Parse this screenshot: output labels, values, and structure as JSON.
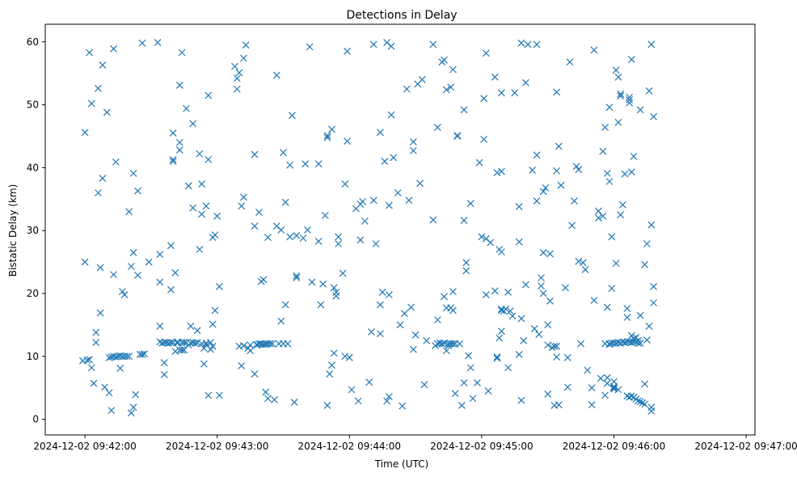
{
  "chart_data": {
    "type": "scatter",
    "title": "Detections in Delay",
    "xlabel": "Time (UTC)",
    "ylabel": "Bistatic Delay (km)",
    "marker": "x",
    "color": "#1f77b4",
    "grid": false,
    "legend": "none",
    "xlim_seconds_after_09_41_42": [
      0,
      322
    ],
    "ylim": [
      -2.5,
      62.8
    ],
    "x_ticks": [
      "2024-12-02 09:42:00",
      "2024-12-02 09:43:00",
      "2024-12-02 09:44:00",
      "2024-12-02 09:45:00",
      "2024-12-02 09:46:00",
      "2024-12-02 09:47:00"
    ],
    "y_ticks": [
      "0",
      "10",
      "20",
      "30",
      "40",
      "50",
      "60"
    ],
    "x_note": "x values are seconds after 2024-12-02 09:42:00",
    "points": [
      [
        -1,
        9.3
      ],
      [
        0,
        25
      ],
      [
        0,
        45.6
      ],
      [
        1,
        9.4
      ],
      [
        2,
        58.3
      ],
      [
        2,
        9.5
      ],
      [
        3,
        8.2
      ],
      [
        3,
        50.2
      ],
      [
        4,
        5.7
      ],
      [
        5,
        13.8
      ],
      [
        5,
        12.2
      ],
      [
        6,
        52.6
      ],
      [
        6,
        36
      ],
      [
        7,
        24.1
      ],
      [
        7,
        16.9
      ],
      [
        8,
        56.3
      ],
      [
        8,
        38.3
      ],
      [
        9,
        5.1
      ],
      [
        10,
        48.8
      ],
      [
        11,
        4.2
      ],
      [
        11,
        9.8
      ],
      [
        12,
        9.9
      ],
      [
        12,
        1.4
      ],
      [
        13,
        10
      ],
      [
        13,
        23
      ],
      [
        13,
        58.9
      ],
      [
        14,
        40.9
      ],
      [
        14,
        9.9
      ],
      [
        15,
        10
      ],
      [
        16,
        10.1
      ],
      [
        16,
        8.1
      ],
      [
        17,
        20.3
      ],
      [
        17,
        10
      ],
      [
        18,
        19.8
      ],
      [
        18,
        10
      ],
      [
        19,
        10
      ],
      [
        20,
        33
      ],
      [
        20,
        10
      ],
      [
        21,
        1
      ],
      [
        21,
        24.3
      ],
      [
        22,
        1.9
      ],
      [
        22,
        26.5
      ],
      [
        22,
        39.1
      ],
      [
        23,
        3.9
      ],
      [
        24,
        36.3
      ],
      [
        24,
        22.9
      ],
      [
        25,
        10.3
      ],
      [
        26,
        10.3
      ],
      [
        26,
        59.8
      ],
      [
        27,
        10.4
      ],
      [
        29,
        25
      ],
      [
        33,
        59.9
      ],
      [
        34,
        21.8
      ],
      [
        34,
        26.2
      ],
      [
        34,
        14.8
      ],
      [
        34,
        12.3
      ],
      [
        35,
        12.1
      ],
      [
        36,
        12.2
      ],
      [
        36,
        7.1
      ],
      [
        36,
        9
      ],
      [
        37,
        12.2
      ],
      [
        38,
        12.1
      ],
      [
        39,
        27.6
      ],
      [
        39,
        12.2
      ],
      [
        39,
        20.6
      ],
      [
        40,
        41
      ],
      [
        40,
        41.3
      ],
      [
        40,
        45.5
      ],
      [
        40,
        12.2
      ],
      [
        41,
        10.8
      ],
      [
        41,
        23.3
      ],
      [
        42,
        12.1
      ],
      [
        42,
        12.3
      ],
      [
        43,
        11
      ],
      [
        43,
        53.1
      ],
      [
        43,
        44
      ],
      [
        43,
        42.8
      ],
      [
        44,
        12.2
      ],
      [
        44,
        11
      ],
      [
        44,
        58.3
      ],
      [
        45,
        11
      ],
      [
        45,
        12.2
      ],
      [
        46,
        49.4
      ],
      [
        46,
        12.2
      ],
      [
        47,
        11.8
      ],
      [
        47,
        37.1
      ],
      [
        48,
        14.8
      ],
      [
        48,
        12.1
      ],
      [
        49,
        47
      ],
      [
        49,
        33.6
      ],
      [
        49,
        12.2
      ],
      [
        50,
        12.1
      ],
      [
        51,
        14.1
      ],
      [
        51,
        12.2
      ],
      [
        52,
        27
      ],
      [
        52,
        42.2
      ],
      [
        53,
        37.4
      ],
      [
        53,
        32.6
      ],
      [
        53,
        12
      ],
      [
        54,
        11.3
      ],
      [
        54,
        8.8
      ],
      [
        55,
        12.1
      ],
      [
        55,
        11.8
      ],
      [
        55,
        33.9
      ],
      [
        56,
        51.5
      ],
      [
        56,
        3.8
      ],
      [
        56,
        41.3
      ],
      [
        57,
        11.1
      ],
      [
        57,
        12.2
      ],
      [
        58,
        11.6
      ],
      [
        58,
        15.1
      ],
      [
        58,
        28.9
      ],
      [
        59,
        17.3
      ],
      [
        59,
        29.3
      ],
      [
        60,
        32.3
      ],
      [
        61,
        21.1
      ],
      [
        61,
        3.8
      ],
      [
        68,
        56.1
      ],
      [
        69,
        54.2
      ],
      [
        69,
        52.5
      ],
      [
        70,
        55.1
      ],
      [
        70,
        11.6
      ],
      [
        71,
        8.5
      ],
      [
        71,
        33.9
      ],
      [
        72,
        35.3
      ],
      [
        72,
        11.7
      ],
      [
        72,
        57.4
      ],
      [
        73,
        59.5
      ],
      [
        74,
        11.3
      ],
      [
        75,
        11.8
      ],
      [
        75,
        10.9
      ],
      [
        77,
        42.1
      ],
      [
        77,
        30.7
      ],
      [
        77,
        7.2
      ],
      [
        78,
        11.9
      ],
      [
        78,
        11.8
      ],
      [
        79,
        12
      ],
      [
        79,
        32.9
      ],
      [
        80,
        12
      ],
      [
        80,
        21.9
      ],
      [
        80,
        11.9
      ],
      [
        81,
        11.9
      ],
      [
        81,
        22.2
      ],
      [
        82,
        12
      ],
      [
        82,
        4.3
      ],
      [
        82,
        11.9
      ],
      [
        83,
        3.3
      ],
      [
        83,
        28.9
      ],
      [
        83,
        12
      ],
      [
        84,
        12
      ],
      [
        85,
        12
      ],
      [
        86,
        3.1
      ],
      [
        87,
        54.7
      ],
      [
        87,
        30.7
      ],
      [
        88,
        12
      ],
      [
        89,
        15.6
      ],
      [
        89,
        30.1
      ],
      [
        90,
        42.4
      ],
      [
        90,
        12
      ],
      [
        91,
        34.5
      ],
      [
        91,
        18.2
      ],
      [
        92,
        12
      ],
      [
        93,
        40.4
      ],
      [
        93,
        29
      ],
      [
        94,
        48.3
      ],
      [
        95,
        2.7
      ],
      [
        96,
        22.5
      ],
      [
        96,
        29.2
      ],
      [
        96,
        22.8
      ],
      [
        99,
        28.8
      ],
      [
        100,
        40.6
      ],
      [
        101,
        30.1
      ],
      [
        102,
        59.2
      ],
      [
        103,
        21.8
      ],
      [
        106,
        40.6
      ],
      [
        106,
        28.3
      ],
      [
        107,
        18.2
      ],
      [
        108,
        21.5
      ],
      [
        109,
        32.4
      ],
      [
        110,
        45.1
      ],
      [
        110,
        44.8
      ],
      [
        110,
        2.2
      ],
      [
        111,
        7.2
      ],
      [
        112,
        46.1
      ],
      [
        112,
        8.6
      ],
      [
        113,
        10.5
      ],
      [
        113,
        20.9
      ],
      [
        114,
        20.2
      ],
      [
        114,
        19.6
      ],
      [
        115,
        27.9
      ],
      [
        115,
        29
      ],
      [
        117,
        23.2
      ],
      [
        118,
        37.4
      ],
      [
        118,
        10
      ],
      [
        119,
        44.2
      ],
      [
        119,
        58.5
      ],
      [
        120,
        9.8
      ],
      [
        121,
        4.7
      ],
      [
        123,
        33.5
      ],
      [
        124,
        2.9
      ],
      [
        125,
        28.5
      ],
      [
        125,
        34.2
      ],
      [
        126,
        34.6
      ],
      [
        127,
        31.5
      ],
      [
        129,
        5.9
      ],
      [
        130,
        13.9
      ],
      [
        131,
        34.8
      ],
      [
        131,
        59.6
      ],
      [
        132,
        27.9
      ],
      [
        134,
        18.2
      ],
      [
        134,
        45.6
      ],
      [
        134,
        13.6
      ],
      [
        135,
        20.2
      ],
      [
        136,
        41
      ],
      [
        137,
        2.9
      ],
      [
        137,
        59.9
      ],
      [
        138,
        34
      ],
      [
        138,
        19.8
      ],
      [
        138,
        3.6
      ],
      [
        139,
        59.3
      ],
      [
        139,
        48.4
      ],
      [
        140,
        41.6
      ],
      [
        142,
        36
      ],
      [
        143,
        15
      ],
      [
        144,
        2.1
      ],
      [
        145,
        16.8
      ],
      [
        146,
        52.5
      ],
      [
        147,
        34.8
      ],
      [
        148,
        17.8
      ],
      [
        149,
        44.1
      ],
      [
        149,
        42.7
      ],
      [
        149,
        11.1
      ],
      [
        150,
        13.4
      ],
      [
        151,
        53.3
      ],
      [
        152,
        37.5
      ],
      [
        153,
        54
      ],
      [
        154,
        5.5
      ],
      [
        155,
        12.5
      ],
      [
        158,
        31.7
      ],
      [
        158,
        59.6
      ],
      [
        159,
        11.7
      ],
      [
        160,
        15.8
      ],
      [
        160,
        46.4
      ],
      [
        160,
        12
      ],
      [
        161,
        12.1
      ],
      [
        162,
        56.8
      ],
      [
        162,
        12
      ],
      [
        163,
        19.5
      ],
      [
        163,
        12.1
      ],
      [
        163,
        57.1
      ],
      [
        164,
        52.4
      ],
      [
        164,
        10.9
      ],
      [
        164,
        17.7
      ],
      [
        165,
        12
      ],
      [
        165,
        11.7
      ],
      [
        166,
        17.7
      ],
      [
        166,
        12
      ],
      [
        166,
        52.8
      ],
      [
        166,
        12
      ],
      [
        167,
        20.3
      ],
      [
        167,
        17.3
      ],
      [
        167,
        12
      ],
      [
        167,
        55.6
      ],
      [
        168,
        12
      ],
      [
        168,
        4.1
      ],
      [
        169,
        45.1
      ],
      [
        169,
        45
      ],
      [
        170,
        12
      ],
      [
        171,
        2.2
      ],
      [
        172,
        31.6
      ],
      [
        172,
        49.2
      ],
      [
        172,
        5.8
      ],
      [
        173,
        24.9
      ],
      [
        173,
        23.6
      ],
      [
        174,
        10.1
      ],
      [
        175,
        34.3
      ],
      [
        175,
        8.2
      ],
      [
        176,
        3.3
      ],
      [
        178,
        5.8
      ],
      [
        179,
        40.8
      ],
      [
        180,
        29
      ],
      [
        181,
        51
      ],
      [
        181,
        44.5
      ],
      [
        182,
        58.2
      ],
      [
        182,
        28.7
      ],
      [
        182,
        19.8
      ],
      [
        183,
        4.5
      ],
      [
        184,
        28.1
      ],
      [
        186,
        54.4
      ],
      [
        186,
        20.4
      ],
      [
        187,
        9.9
      ],
      [
        187,
        9.7
      ],
      [
        187,
        39.2
      ],
      [
        188,
        12.9
      ],
      [
        188,
        27
      ],
      [
        189,
        26.6
      ],
      [
        189,
        39.4
      ],
      [
        189,
        14
      ],
      [
        189,
        51.9
      ],
      [
        189,
        17.5
      ],
      [
        189,
        17.3
      ],
      [
        190,
        17.2
      ],
      [
        191,
        17.5
      ],
      [
        192,
        8.2
      ],
      [
        192,
        20.2
      ],
      [
        193,
        17.2
      ],
      [
        194,
        16.4
      ],
      [
        195,
        51.9
      ],
      [
        197,
        33.8
      ],
      [
        197,
        28.2
      ],
      [
        197,
        10.3
      ],
      [
        198,
        16
      ],
      [
        198,
        59.8
      ],
      [
        198,
        3
      ],
      [
        199,
        12.5
      ],
      [
        200,
        53.5
      ],
      [
        200,
        21.4
      ],
      [
        201,
        59.6
      ],
      [
        203,
        39.6
      ],
      [
        204,
        14.4
      ],
      [
        205,
        59.6
      ],
      [
        205,
        42
      ],
      [
        205,
        34.7
      ],
      [
        206,
        13.5
      ],
      [
        207,
        22.5
      ],
      [
        207,
        21.2
      ],
      [
        208,
        36.2
      ],
      [
        208,
        26.5
      ],
      [
        208,
        20
      ],
      [
        209,
        36.8
      ],
      [
        210,
        11.8
      ],
      [
        210,
        15
      ],
      [
        210,
        4
      ],
      [
        211,
        18.8
      ],
      [
        211,
        26.3
      ],
      [
        212,
        11.4
      ],
      [
        213,
        2.2
      ],
      [
        213,
        11.6
      ],
      [
        214,
        39.5
      ],
      [
        214,
        9.9
      ],
      [
        214,
        52
      ],
      [
        214,
        11.6
      ],
      [
        215,
        2.3
      ],
      [
        215,
        43.4
      ],
      [
        216,
        37.2
      ],
      [
        218,
        20.9
      ],
      [
        219,
        5.1
      ],
      [
        219,
        9.8
      ],
      [
        220,
        56.8
      ],
      [
        221,
        30.8
      ],
      [
        222,
        34.7
      ],
      [
        223,
        40.2
      ],
      [
        224,
        39.7
      ],
      [
        224,
        25.1
      ],
      [
        225,
        12
      ],
      [
        226,
        24.9
      ],
      [
        227,
        23.8
      ],
      [
        228,
        7.8
      ],
      [
        230,
        2.3
      ],
      [
        230,
        5
      ],
      [
        231,
        18.9
      ],
      [
        231,
        58.7
      ],
      [
        233,
        32
      ],
      [
        233,
        33.1
      ],
      [
        234,
        6.5
      ],
      [
        235,
        42.6
      ],
      [
        235,
        32.3
      ],
      [
        236,
        12
      ],
      [
        236,
        46.4
      ],
      [
        236,
        3.8
      ],
      [
        237,
        39.1
      ],
      [
        237,
        5.7
      ],
      [
        237,
        6.6
      ],
      [
        237,
        17.8
      ],
      [
        238,
        12
      ],
      [
        238,
        37.8
      ],
      [
        238,
        11.9
      ],
      [
        238,
        49.6
      ],
      [
        239,
        12.1
      ],
      [
        239,
        20.8
      ],
      [
        239,
        29
      ],
      [
        240,
        5
      ],
      [
        240,
        4.8
      ],
      [
        240,
        12.1
      ],
      [
        240,
        6
      ],
      [
        240,
        5.2
      ],
      [
        241,
        12.1
      ],
      [
        241,
        24.8
      ],
      [
        241,
        55.5
      ],
      [
        242,
        47.2
      ],
      [
        242,
        12.2
      ],
      [
        242,
        54.4
      ],
      [
        242,
        4.7
      ],
      [
        243,
        51.7
      ],
      [
        243,
        12.1
      ],
      [
        243,
        32.5
      ],
      [
        243,
        51.4
      ],
      [
        244,
        34.1
      ],
      [
        244,
        12.3
      ],
      [
        245,
        12.2
      ],
      [
        245,
        39
      ],
      [
        245,
        12.2
      ],
      [
        246,
        12.3
      ],
      [
        246,
        17.6
      ],
      [
        246,
        3.7
      ],
      [
        246,
        16.2
      ],
      [
        247,
        51.2
      ],
      [
        247,
        12.3
      ],
      [
        247,
        50.3
      ],
      [
        247,
        3.5
      ],
      [
        247,
        50.8
      ],
      [
        248,
        3.7
      ],
      [
        248,
        13.3
      ],
      [
        248,
        12.2
      ],
      [
        248,
        57.2
      ],
      [
        248,
        39.3
      ],
      [
        249,
        41.8
      ],
      [
        249,
        12.3
      ],
      [
        249,
        12.8
      ],
      [
        249,
        3.5
      ],
      [
        250,
        12.3
      ],
      [
        250,
        3.2
      ],
      [
        250,
        13
      ],
      [
        251,
        12.1
      ],
      [
        251,
        12.5
      ],
      [
        251,
        2.9
      ],
      [
        252,
        16.5
      ],
      [
        252,
        12.1
      ],
      [
        252,
        2.8
      ],
      [
        252,
        49.2
      ],
      [
        253,
        2.6
      ],
      [
        254,
        24.6
      ],
      [
        254,
        5.6
      ],
      [
        254,
        2.4
      ],
      [
        255,
        27.9
      ],
      [
        255,
        12.6
      ],
      [
        256,
        14.8
      ],
      [
        256,
        52.2
      ],
      [
        257,
        30.9
      ],
      [
        257,
        1.3
      ],
      [
        257,
        1.9
      ],
      [
        257,
        59.6
      ],
      [
        258,
        21.1
      ],
      [
        258,
        48.1
      ],
      [
        258,
        18.5
      ]
    ]
  }
}
